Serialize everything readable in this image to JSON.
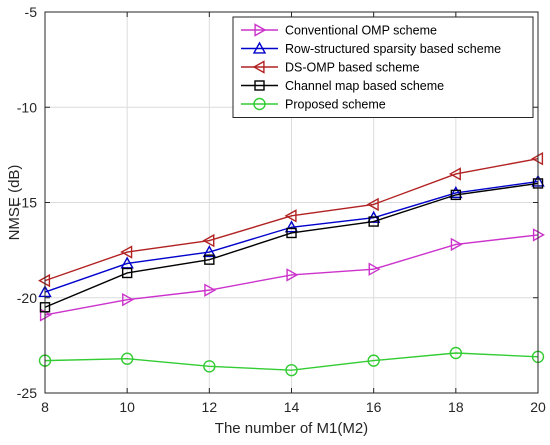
{
  "chart_data": {
    "type": "line",
    "title": "",
    "xlabel": "The number of M1(M2)",
    "ylabel": "NMSE (dB)",
    "x": [
      8,
      10,
      12,
      14,
      16,
      18,
      20
    ],
    "xlim": [
      8,
      20
    ],
    "ylim": [
      -25,
      -5
    ],
    "xticks": [
      8,
      10,
      12,
      14,
      16,
      18,
      20
    ],
    "yticks": [
      -5,
      -10,
      -15,
      -20,
      -25
    ],
    "grid": true,
    "legend_position": "top-right",
    "series": [
      {
        "name": "Conventional OMP scheme",
        "color": "#cc33cc",
        "marker": "triangle-right",
        "values": [
          -20.9,
          -20.1,
          -19.6,
          -18.8,
          -18.5,
          -17.2,
          -16.7
        ]
      },
      {
        "name": "Row-structured sparsity based scheme",
        "color": "#0000cc",
        "marker": "triangle-up",
        "values": [
          -19.7,
          -18.2,
          -17.6,
          -16.3,
          -15.8,
          -14.5,
          -13.9
        ]
      },
      {
        "name": "DS-OMP based scheme",
        "color": "#b22222",
        "marker": "triangle-left",
        "values": [
          -19.1,
          -17.6,
          -17.0,
          -15.7,
          -15.1,
          -13.5,
          -12.7
        ]
      },
      {
        "name": "Channel map based scheme",
        "color": "#000000",
        "marker": "square",
        "values": [
          -20.5,
          -18.7,
          -18.0,
          -16.6,
          -16.0,
          -14.6,
          -14.0
        ]
      },
      {
        "name": "Proposed scheme",
        "color": "#33cc33",
        "marker": "circle",
        "values": [
          -23.3,
          -23.2,
          -23.6,
          -23.8,
          -23.3,
          -22.9,
          -23.1
        ]
      }
    ]
  }
}
